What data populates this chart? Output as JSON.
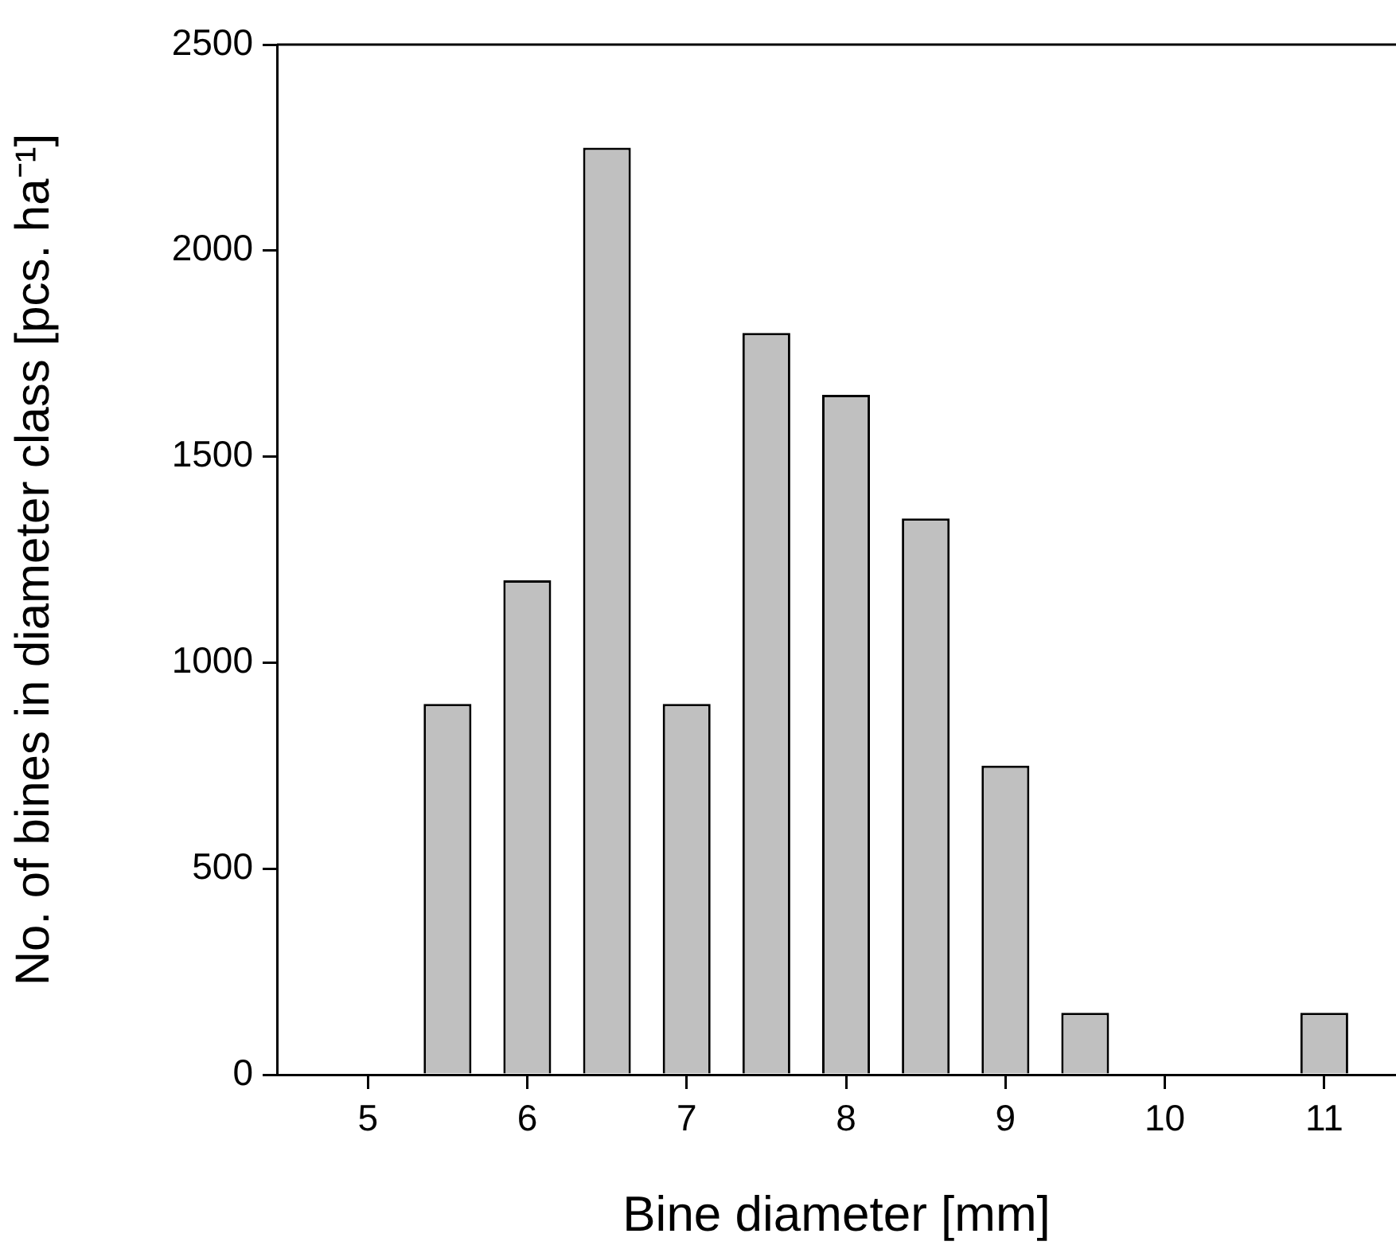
{
  "chart_data": {
    "type": "bar",
    "xlabel": "Bine diameter [mm]",
    "ylabel": "No. of bines in diameter class [pcs. ha⁻¹]",
    "x": [
      5.5,
      6,
      6.5,
      7,
      7.5,
      8,
      8.5,
      9,
      9.5,
      11
    ],
    "values": [
      900,
      1200,
      2250,
      900,
      1800,
      1650,
      1350,
      750,
      150,
      150
    ],
    "color": "#c0c0c0",
    "xlim": [
      4.43,
      11.45
    ],
    "xticks": [
      5,
      6,
      7,
      8,
      9,
      10,
      11
    ],
    "ylim": [
      0,
      2500
    ],
    "yticks": [
      0,
      500,
      1000,
      1500,
      2000,
      2500
    ],
    "grid": false,
    "legend": false
  }
}
